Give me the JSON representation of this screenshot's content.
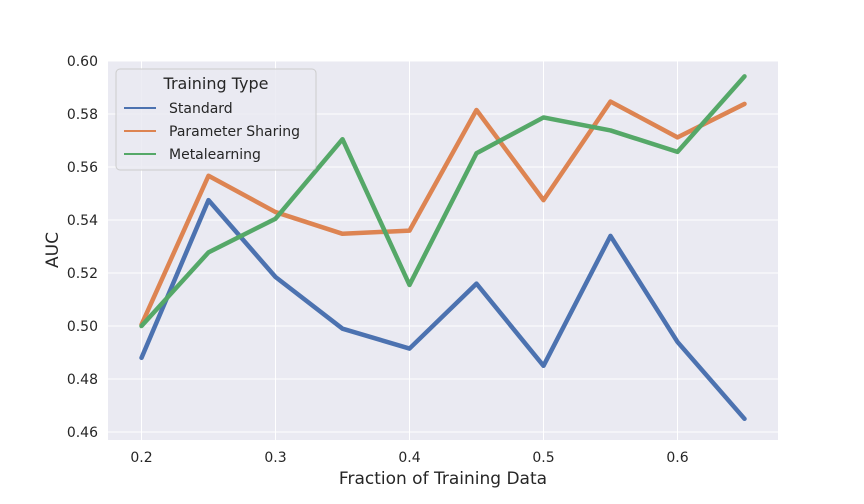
{
  "chart_data": {
    "type": "line",
    "title": "",
    "xlabel": "Fraction of Training Data",
    "ylabel": "AUC",
    "x": [
      0.2,
      0.25,
      0.3,
      0.35,
      0.4,
      0.45,
      0.5,
      0.55,
      0.6,
      0.65
    ],
    "xlim": [
      0.175,
      0.675
    ],
    "ylim": [
      0.457,
      0.6
    ],
    "xticks": [
      0.2,
      0.3,
      0.4,
      0.5,
      0.6
    ],
    "xtick_labels": [
      "0.2",
      "0.3",
      "0.4",
      "0.5",
      "0.6"
    ],
    "yticks": [
      0.46,
      0.48,
      0.5,
      0.52,
      0.54,
      0.56,
      0.58,
      0.6
    ],
    "ytick_labels": [
      "0.46",
      "0.48",
      "0.50",
      "0.52",
      "0.54",
      "0.56",
      "0.58",
      "0.60"
    ],
    "grid": true,
    "background_color": "#eaeaf2",
    "legend": {
      "title": "Training Type",
      "placement": "top-left"
    },
    "series": [
      {
        "name": "Standard",
        "color": "#4c72b0",
        "values": [
          0.488,
          0.5475,
          0.5185,
          0.499,
          0.4915,
          0.516,
          0.485,
          0.534,
          0.494,
          0.465
        ]
      },
      {
        "name": "Parameter Sharing",
        "color": "#dd8452",
        "values": [
          0.5005,
          0.5567,
          0.543,
          0.5348,
          0.536,
          0.5815,
          0.5475,
          0.5847,
          0.5712,
          0.5838
        ]
      },
      {
        "name": "Metalearning",
        "color": "#55a868",
        "values": [
          0.5,
          0.5278,
          0.5405,
          0.5705,
          0.5155,
          0.5652,
          0.5787,
          0.5738,
          0.5657,
          0.5942
        ]
      }
    ]
  }
}
